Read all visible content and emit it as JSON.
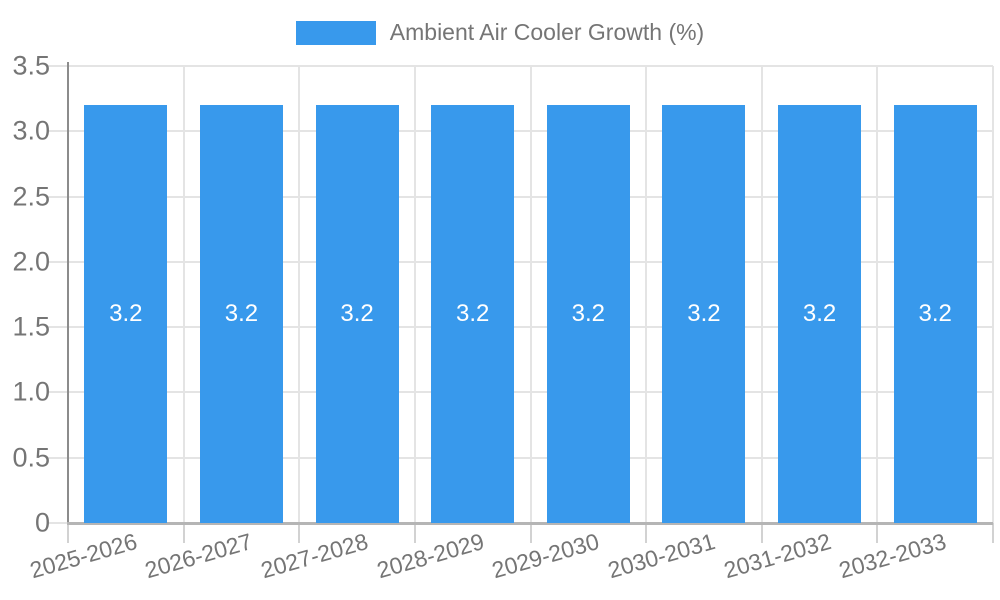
{
  "legend": {
    "label": "Ambient Air Cooler Growth (%)"
  },
  "chart_data": {
    "type": "bar",
    "title": "Ambient Air Cooler Growth (%)",
    "xlabel": "",
    "ylabel": "",
    "categories": [
      "2025-2026",
      "2026-2027",
      "2027-2028",
      "2028-2029",
      "2029-2030",
      "2030-2031",
      "2031-2032",
      "2032-2033"
    ],
    "series": [
      {
        "name": "Ambient Air Cooler Growth (%)",
        "values": [
          3.2,
          3.2,
          3.2,
          3.2,
          3.2,
          3.2,
          3.2,
          3.2
        ]
      }
    ],
    "value_labels": [
      "3.2",
      "3.2",
      "3.2",
      "3.2",
      "3.2",
      "3.2",
      "3.2",
      "3.2"
    ],
    "ylim": [
      0,
      3.5
    ],
    "y_tick_values": [
      0,
      0.5,
      1,
      1.5,
      2,
      2.5,
      3,
      3.5
    ],
    "y_tick_labels": [
      "0",
      "0.5",
      "1.0",
      "1.5",
      "2.0",
      "2.5",
      "3.0",
      "3.5"
    ],
    "grid": true,
    "legend_position": "top",
    "colors": {
      "bar": "#3899EC",
      "axis_label": "#757575",
      "value_label": "#FFFFFF",
      "gridline": "#E4E4E4",
      "tick": "#D2D2D2",
      "y_axis_line": "#8C8C8C",
      "x_axis_line": "#B5B5B5",
      "background": "#FFFFFF"
    }
  }
}
